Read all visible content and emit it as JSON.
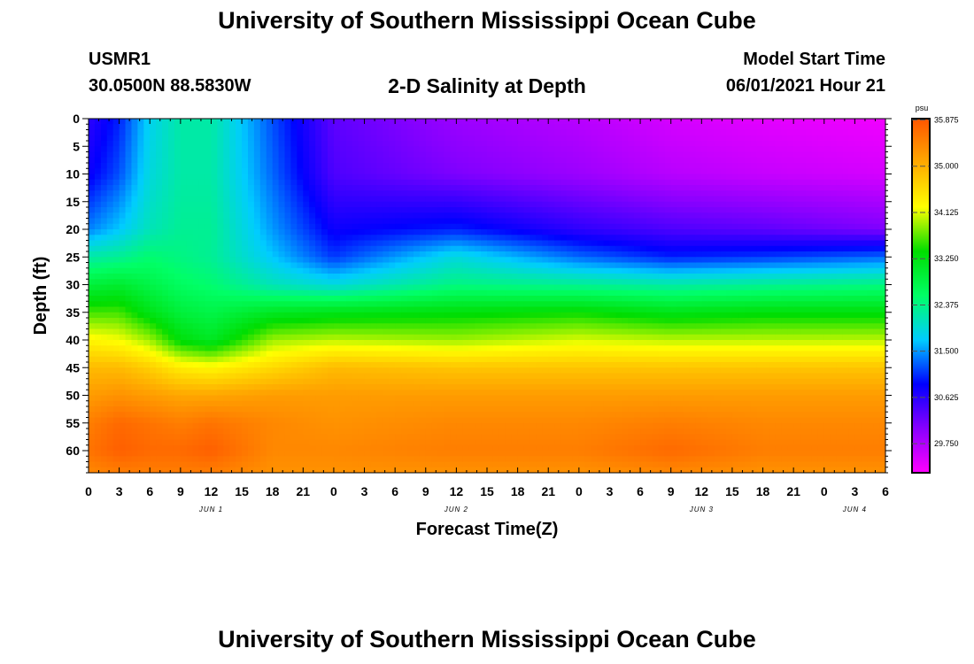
{
  "header": {
    "title": "University of Southern Mississippi Ocean Cube",
    "station": "USMR1",
    "coords": "30.0500N  88.5830W",
    "subtitle": "2-D Salinity at Depth",
    "model_label": "Model Start Time",
    "model_time": "06/01/2021 Hour 21"
  },
  "footer": {
    "title": "University of Southern Mississippi Ocean Cube"
  },
  "chart_data": {
    "type": "heatmap",
    "title": "2-D Salinity at Depth",
    "xlabel": "Forecast Time(Z)",
    "ylabel": "Depth (ft)",
    "x_tick_labels": [
      "0",
      "3",
      "6",
      "9",
      "12",
      "15",
      "18",
      "21",
      "0",
      "3",
      "6",
      "9",
      "12",
      "15",
      "18",
      "21",
      "0",
      "3",
      "6",
      "9",
      "12",
      "15",
      "18",
      "21",
      "0",
      "3",
      "6"
    ],
    "day_labels": [
      {
        "label": "JUN 1",
        "hours_from_start": 12
      },
      {
        "label": "JUN 2",
        "hours_from_start": 36
      },
      {
        "label": "JUN 3",
        "hours_from_start": 60
      },
      {
        "label": "JUN 4",
        "hours_from_start": 75
      }
    ],
    "xlim_hours": [
      0,
      78
    ],
    "y_tick_labels": [
      "0",
      "5",
      "10",
      "15",
      "20",
      "25",
      "30",
      "35",
      "40",
      "45",
      "50",
      "55",
      "60"
    ],
    "ylim_ft": [
      0,
      64
    ],
    "y_inverted": true,
    "colorbar": {
      "unit": "psu",
      "tick_labels": [
        "35.875",
        "35.000",
        "34.125",
        "33.250",
        "32.375",
        "31.500",
        "30.625",
        "29.750"
      ],
      "range": [
        29.2,
        35.9
      ],
      "colors_low_to_high": [
        "#ff00ff",
        "#8800ff",
        "#0000ff",
        "#00ccff",
        "#00ff66",
        "#00dd00",
        "#ffff00",
        "#ffaa00",
        "#ff5500"
      ]
    },
    "salinity_profiles_psu": {
      "depths_ft": [
        0,
        10,
        20,
        25,
        30,
        35,
        40,
        45,
        50,
        55,
        60,
        64
      ],
      "hours": [
        0,
        3,
        6,
        9,
        12,
        18,
        24,
        36,
        48,
        57,
        66,
        78
      ],
      "values": [
        [
          30.6,
          30.8,
          31.4,
          32.2,
          32.9,
          33.6,
          34.3,
          34.9,
          35.2,
          35.5,
          35.6,
          35.4
        ],
        [
          31.0,
          31.2,
          31.7,
          32.3,
          33.0,
          33.6,
          34.2,
          34.9,
          35.3,
          35.7,
          35.8,
          35.5
        ],
        [
          31.8,
          31.9,
          32.1,
          32.5,
          32.8,
          33.2,
          33.9,
          34.7,
          35.2,
          35.6,
          35.7,
          35.5
        ],
        [
          32.2,
          32.2,
          32.3,
          32.4,
          32.6,
          32.9,
          33.3,
          34.4,
          35.1,
          35.5,
          35.7,
          35.5
        ],
        [
          32.2,
          32.2,
          32.3,
          32.3,
          32.5,
          32.8,
          33.1,
          34.3,
          35.1,
          35.6,
          35.8,
          35.5
        ],
        [
          31.2,
          31.3,
          31.5,
          31.7,
          32.1,
          33.1,
          33.9,
          34.6,
          35.2,
          35.4,
          35.4,
          35.3
        ],
        [
          30.3,
          30.4,
          30.8,
          31.1,
          31.9,
          33.2,
          34.0,
          34.9,
          35.2,
          35.3,
          35.4,
          35.3
        ],
        [
          29.9,
          30.1,
          31.0,
          31.9,
          32.4,
          33.3,
          33.9,
          34.8,
          35.2,
          35.4,
          35.5,
          35.3
        ],
        [
          29.7,
          29.9,
          30.6,
          31.3,
          32.3,
          33.4,
          34.1,
          34.8,
          35.2,
          35.4,
          35.5,
          35.3
        ],
        [
          29.5,
          29.7,
          30.4,
          31.0,
          32.2,
          33.2,
          34.0,
          34.8,
          35.2,
          35.5,
          35.7,
          35.4
        ],
        [
          29.4,
          29.6,
          30.3,
          31.1,
          32.3,
          33.3,
          34.0,
          34.8,
          35.2,
          35.4,
          35.5,
          35.3
        ],
        [
          29.3,
          29.5,
          30.1,
          31.3,
          32.4,
          33.3,
          34.0,
          34.8,
          35.2,
          35.4,
          35.5,
          35.3
        ]
      ]
    },
    "grid": false,
    "legend": "colorbar-right"
  }
}
